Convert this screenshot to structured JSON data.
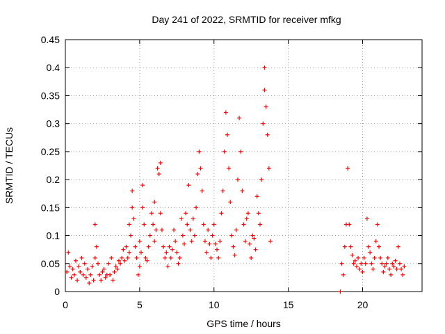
{
  "chart_data": {
    "type": "scatter",
    "title": "Day 241 of 2022, SRMTID for receiver mfkg",
    "xlabel": "GPS time / hours",
    "ylabel": "SRMTID / TECUs",
    "xlim": [
      0,
      24
    ],
    "ylim": [
      0,
      0.45
    ],
    "x_ticks": [
      0,
      5,
      10,
      15,
      20
    ],
    "x_tick_labels": [
      "0",
      "5",
      "10",
      "15",
      "20"
    ],
    "y_ticks": [
      0,
      0.05,
      0.1,
      0.15,
      0.2,
      0.25,
      0.3,
      0.35,
      0.4,
      0.45
    ],
    "y_tick_labels": [
      "0",
      "0.05",
      "0.1",
      "0.15",
      "0.2",
      "0.25",
      "0.3",
      "0.35",
      "0.4",
      "0.45"
    ],
    "grid": true,
    "marker": "+",
    "color": "#ff0000",
    "series": [
      {
        "name": "SRMTID",
        "points": [
          [
            0.1,
            0.035
          ],
          [
            0.2,
            0.07
          ],
          [
            0.3,
            0.045
          ],
          [
            0.4,
            0.025
          ],
          [
            0.5,
            0.04
          ],
          [
            0.6,
            0.03
          ],
          [
            0.7,
            0.055
          ],
          [
            0.8,
            0.02
          ],
          [
            0.9,
            0.045
          ],
          [
            1.0,
            0.035
          ],
          [
            1.1,
            0.06
          ],
          [
            1.2,
            0.03
          ],
          [
            1.3,
            0.05
          ],
          [
            1.4,
            0.025
          ],
          [
            1.5,
            0.04
          ],
          [
            1.6,
            0.015
          ],
          [
            1.7,
            0.03
          ],
          [
            1.8,
            0.045
          ],
          [
            1.9,
            0.02
          ],
          [
            2.0,
            0.06
          ],
          [
            2.0,
            0.12
          ],
          [
            2.1,
            0.08
          ],
          [
            2.2,
            0.05
          ],
          [
            2.3,
            0.03
          ],
          [
            2.4,
            0.02
          ],
          [
            2.5,
            0.035
          ],
          [
            2.6,
            0.04
          ],
          [
            2.7,
            0.025
          ],
          [
            2.8,
            0.03
          ],
          [
            2.9,
            0.05
          ],
          [
            3.0,
            0.03
          ],
          [
            3.1,
            0.06
          ],
          [
            3.2,
            0.02
          ],
          [
            3.3,
            0.035
          ],
          [
            3.4,
            0.045
          ],
          [
            3.5,
            0.04
          ],
          [
            3.6,
            0.055
          ],
          [
            3.7,
            0.05
          ],
          [
            3.8,
            0.06
          ],
          [
            3.9,
            0.075
          ],
          [
            4.0,
            0.055
          ],
          [
            4.1,
            0.08
          ],
          [
            4.2,
            0.06
          ],
          [
            4.3,
            0.07
          ],
          [
            4.3,
            0.12
          ],
          [
            4.4,
            0.1
          ],
          [
            4.5,
            0.15
          ],
          [
            4.5,
            0.18
          ],
          [
            4.6,
            0.13
          ],
          [
            4.7,
            0.08
          ],
          [
            4.8,
            0.06
          ],
          [
            4.9,
            0.03
          ],
          [
            5.0,
            0.045
          ],
          [
            5.0,
            0.09
          ],
          [
            5.1,
            0.07
          ],
          [
            5.2,
            0.15
          ],
          [
            5.2,
            0.19
          ],
          [
            5.3,
            0.12
          ],
          [
            5.4,
            0.06
          ],
          [
            5.5,
            0.055
          ],
          [
            5.6,
            0.08
          ],
          [
            5.7,
            0.1
          ],
          [
            5.8,
            0.14
          ],
          [
            5.9,
            0.12
          ],
          [
            6.0,
            0.16
          ],
          [
            6.0,
            0.09
          ],
          [
            6.1,
            0.11
          ],
          [
            6.2,
            0.22
          ],
          [
            6.3,
            0.21
          ],
          [
            6.4,
            0.23
          ],
          [
            6.4,
            0.14
          ],
          [
            6.5,
            0.11
          ],
          [
            6.6,
            0.08
          ],
          [
            6.7,
            0.06
          ],
          [
            6.8,
            0.07
          ],
          [
            6.9,
            0.045
          ],
          [
            7.0,
            0.08
          ],
          [
            7.1,
            0.06
          ],
          [
            7.2,
            0.075
          ],
          [
            7.3,
            0.11
          ],
          [
            7.4,
            0.09
          ],
          [
            7.5,
            0.07
          ],
          [
            7.6,
            0.05
          ],
          [
            7.7,
            0.06
          ],
          [
            7.8,
            0.13
          ],
          [
            7.9,
            0.1
          ],
          [
            8.0,
            0.085
          ],
          [
            8.1,
            0.14
          ],
          [
            8.2,
            0.12
          ],
          [
            8.3,
            0.19
          ],
          [
            8.4,
            0.11
          ],
          [
            8.5,
            0.09
          ],
          [
            8.6,
            0.13
          ],
          [
            8.7,
            0.1
          ],
          [
            8.8,
            0.15
          ],
          [
            8.9,
            0.21
          ],
          [
            9.0,
            0.25
          ],
          [
            9.1,
            0.22
          ],
          [
            9.2,
            0.18
          ],
          [
            9.3,
            0.12
          ],
          [
            9.4,
            0.09
          ],
          [
            9.5,
            0.07
          ],
          [
            9.6,
            0.11
          ],
          [
            9.7,
            0.085
          ],
          [
            9.8,
            0.06
          ],
          [
            9.9,
            0.1
          ],
          [
            10.0,
            0.12
          ],
          [
            10.1,
            0.085
          ],
          [
            10.2,
            0.075
          ],
          [
            10.3,
            0.06
          ],
          [
            10.4,
            0.09
          ],
          [
            10.5,
            0.14
          ],
          [
            10.6,
            0.18
          ],
          [
            10.7,
            0.25
          ],
          [
            10.8,
            0.32
          ],
          [
            10.9,
            0.28
          ],
          [
            11.0,
            0.22
          ],
          [
            11.1,
            0.16
          ],
          [
            11.2,
            0.1
          ],
          [
            11.3,
            0.08
          ],
          [
            11.4,
            0.065
          ],
          [
            11.5,
            0.11
          ],
          [
            11.6,
            0.2
          ],
          [
            11.7,
            0.31
          ],
          [
            11.8,
            0.25
          ],
          [
            11.9,
            0.18
          ],
          [
            12.0,
            0.12
          ],
          [
            12.1,
            0.09
          ],
          [
            12.2,
            0.13
          ],
          [
            12.3,
            0.14
          ],
          [
            12.4,
            0.085
          ],
          [
            12.5,
            0.06
          ],
          [
            12.6,
            0.1
          ],
          [
            12.7,
            0.095
          ],
          [
            12.8,
            0.075
          ],
          [
            12.9,
            0.17
          ],
          [
            13.0,
            0.14
          ],
          [
            13.1,
            0.12
          ],
          [
            13.2,
            0.2
          ],
          [
            13.3,
            0.3
          ],
          [
            13.4,
            0.4
          ],
          [
            13.4,
            0.36
          ],
          [
            13.5,
            0.33
          ],
          [
            13.6,
            0.28
          ],
          [
            13.7,
            0.22
          ],
          [
            13.8,
            0.09
          ],
          [
            18.5,
            0.0
          ],
          [
            18.6,
            0.05
          ],
          [
            18.7,
            0.03
          ],
          [
            18.8,
            0.08
          ],
          [
            18.9,
            0.12
          ],
          [
            19.0,
            0.22
          ],
          [
            19.1,
            0.12
          ],
          [
            19.2,
            0.08
          ],
          [
            19.3,
            0.065
          ],
          [
            19.4,
            0.05
          ],
          [
            19.5,
            0.055
          ],
          [
            19.6,
            0.045
          ],
          [
            19.7,
            0.06
          ],
          [
            19.8,
            0.04
          ],
          [
            19.9,
            0.05
          ],
          [
            20.0,
            0.035
          ],
          [
            20.1,
            0.06
          ],
          [
            20.2,
            0.05
          ],
          [
            20.3,
            0.13
          ],
          [
            20.4,
            0.08
          ],
          [
            20.5,
            0.07
          ],
          [
            20.6,
            0.05
          ],
          [
            20.7,
            0.04
          ],
          [
            20.8,
            0.06
          ],
          [
            20.9,
            0.09
          ],
          [
            21.0,
            0.12
          ],
          [
            21.1,
            0.08
          ],
          [
            21.2,
            0.06
          ],
          [
            21.3,
            0.05
          ],
          [
            21.4,
            0.035
          ],
          [
            21.5,
            0.045
          ],
          [
            21.6,
            0.05
          ],
          [
            21.7,
            0.06
          ],
          [
            21.8,
            0.04
          ],
          [
            21.9,
            0.03
          ],
          [
            22.0,
            0.05
          ],
          [
            22.1,
            0.045
          ],
          [
            22.2,
            0.055
          ],
          [
            22.3,
            0.04
          ],
          [
            22.4,
            0.08
          ],
          [
            22.5,
            0.05
          ],
          [
            22.6,
            0.04
          ],
          [
            22.7,
            0.03
          ],
          [
            22.8,
            0.045
          ]
        ]
      }
    ]
  }
}
